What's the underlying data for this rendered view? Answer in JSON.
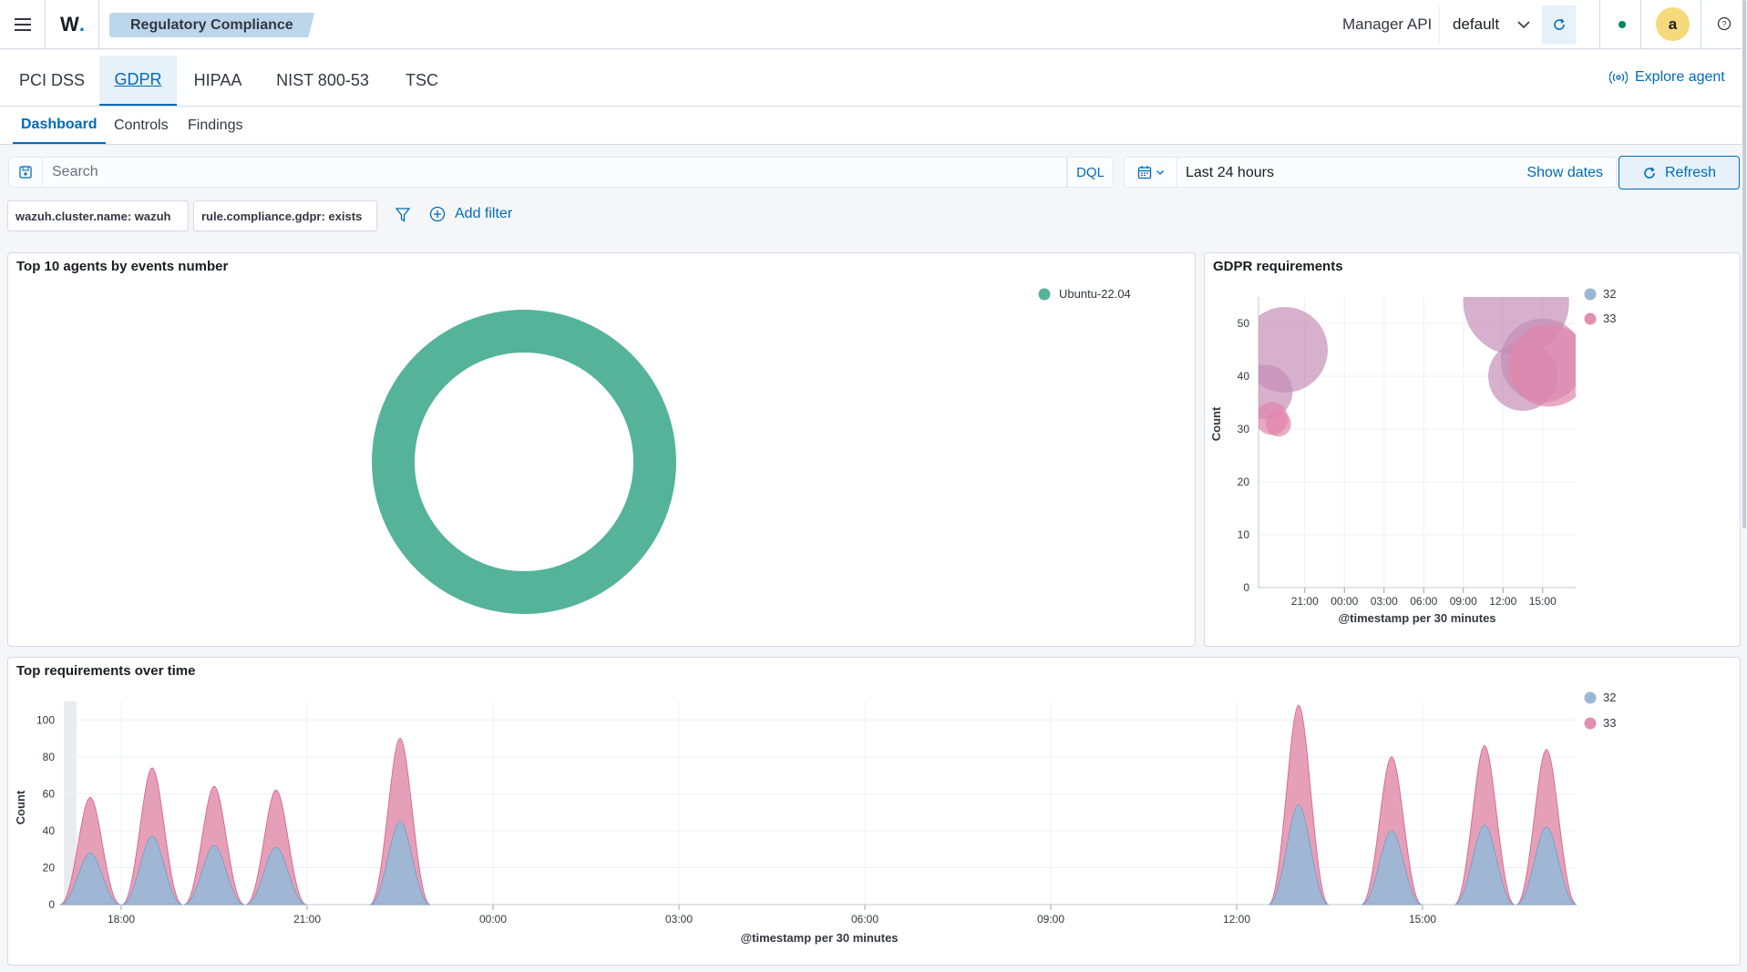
{
  "header": {
    "logo": "W",
    "breadcrumb": "Regulatory Compliance",
    "manager_api_label": "Manager API",
    "manager_api_value": "default",
    "user_initial": "a"
  },
  "tabs": [
    {
      "label": "PCI DSS"
    },
    {
      "label": "GDPR",
      "active": true
    },
    {
      "label": "HIPAA"
    },
    {
      "label": "NIST 800-53"
    },
    {
      "label": "TSC"
    }
  ],
  "explore_agent": "Explore agent",
  "subtabs": [
    {
      "label": "Dashboard",
      "active": true
    },
    {
      "label": "Controls"
    },
    {
      "label": "Findings"
    }
  ],
  "search": {
    "placeholder": "Search",
    "language": "DQL",
    "time_range": "Last 24 hours",
    "show_dates": "Show dates",
    "refresh": "Refresh"
  },
  "filters": {
    "pills": [
      "wazuh.cluster.name: wazuh",
      "rule.compliance.gdpr: exists"
    ],
    "add_filter": "Add filter"
  },
  "colors": {
    "accent": "#006bb8",
    "donut": "#54b399",
    "series_32": "#9bb8d6",
    "series_33": "#e08fac"
  },
  "chart_data": [
    {
      "type": "pie",
      "title": "Top 10 agents by events number",
      "donut": true,
      "labels": [
        "Ubuntu-22.04"
      ],
      "values": [
        100
      ],
      "legend": "top-right"
    },
    {
      "type": "scatter",
      "title": "GDPR requirements",
      "xlabel": "@timestamp per 30 minutes",
      "ylabel": "Count",
      "x_ticks": [
        "21:00",
        "00:00",
        "03:00",
        "06:00",
        "09:00",
        "12:00",
        "15:00"
      ],
      "y_ticks": [
        "0",
        "10",
        "20",
        "30",
        "40",
        "50"
      ],
      "ylim": [
        0,
        55
      ],
      "grid": true,
      "legend": "top-right",
      "series": [
        {
          "name": "32",
          "points": [
            {
              "x": "18:00",
              "y": 37
            },
            {
              "x": "19:30",
              "y": 45
            },
            {
              "x": "13:00",
              "y": 54
            },
            {
              "x": "13:30",
              "y": 40
            },
            {
              "x": "15:00",
              "y": 43
            }
          ]
        },
        {
          "name": "33",
          "points": [
            {
              "x": "18:30",
              "y": 32
            },
            {
              "x": "19:00",
              "y": 31
            },
            {
              "x": "15:30",
              "y": 42
            }
          ]
        }
      ]
    },
    {
      "type": "area",
      "title": "Top requirements over time",
      "xlabel": "@timestamp per 30 minutes",
      "ylabel": "Count",
      "x_ticks": [
        "18:00",
        "21:00",
        "00:00",
        "03:00",
        "06:00",
        "09:00",
        "12:00",
        "15:00"
      ],
      "y_ticks": [
        "0",
        "20",
        "40",
        "60",
        "80",
        "100"
      ],
      "ylim": [
        0,
        110
      ],
      "grid": true,
      "stacked": true,
      "legend": "top-right",
      "series": [
        {
          "name": "32",
          "points": [
            {
              "x": "17:30",
              "y": 28
            },
            {
              "x": "18:30",
              "y": 37
            },
            {
              "x": "19:30",
              "y": 32
            },
            {
              "x": "20:30",
              "y": 31
            },
            {
              "x": "22:30",
              "y": 45
            },
            {
              "x": "13:00",
              "y": 54
            },
            {
              "x": "14:30",
              "y": 40
            },
            {
              "x": "16:00",
              "y": 43
            },
            {
              "x": "17:00",
              "y": 42
            }
          ]
        },
        {
          "name": "33",
          "points": [
            {
              "x": "17:30",
              "y": 58
            },
            {
              "x": "18:30",
              "y": 74
            },
            {
              "x": "19:30",
              "y": 64
            },
            {
              "x": "20:30",
              "y": 62
            },
            {
              "x": "22:30",
              "y": 90
            },
            {
              "x": "13:00",
              "y": 108
            },
            {
              "x": "14:30",
              "y": 80
            },
            {
              "x": "16:00",
              "y": 86
            },
            {
              "x": "17:00",
              "y": 84
            }
          ]
        }
      ]
    }
  ]
}
